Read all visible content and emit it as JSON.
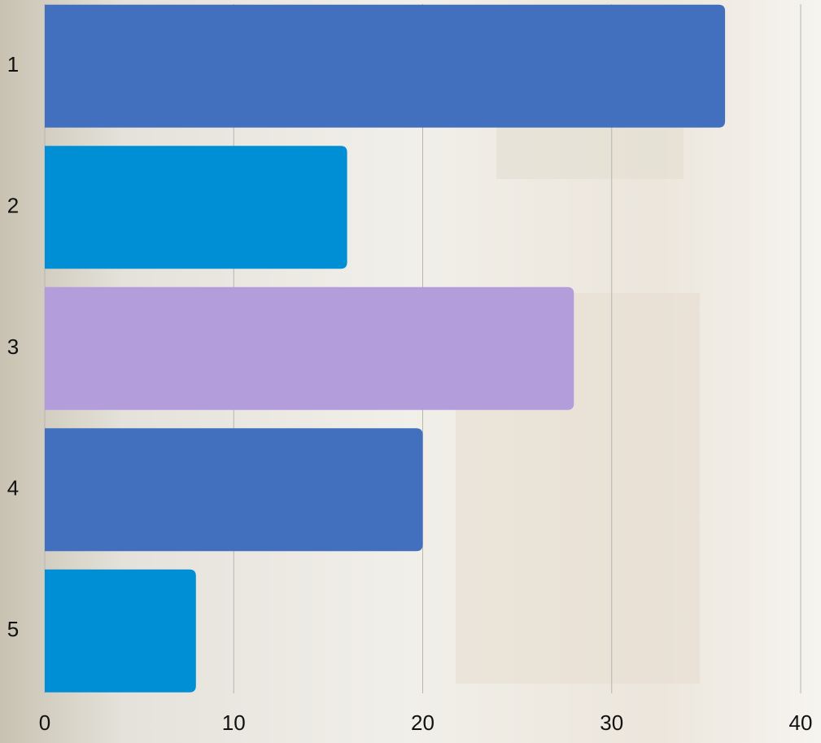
{
  "chart_data": {
    "type": "hbar",
    "categories": [
      "1",
      "2",
      "3",
      "4",
      "5"
    ],
    "values": [
      36,
      16,
      28,
      20,
      8
    ],
    "colors": [
      "#436fbf",
      "#008fd5",
      "#b39ddb",
      "#436fbf",
      "#008fd5"
    ],
    "xlim": [
      0,
      40
    ],
    "xticks": [
      0,
      10,
      20,
      30,
      40
    ],
    "grid": true
  }
}
